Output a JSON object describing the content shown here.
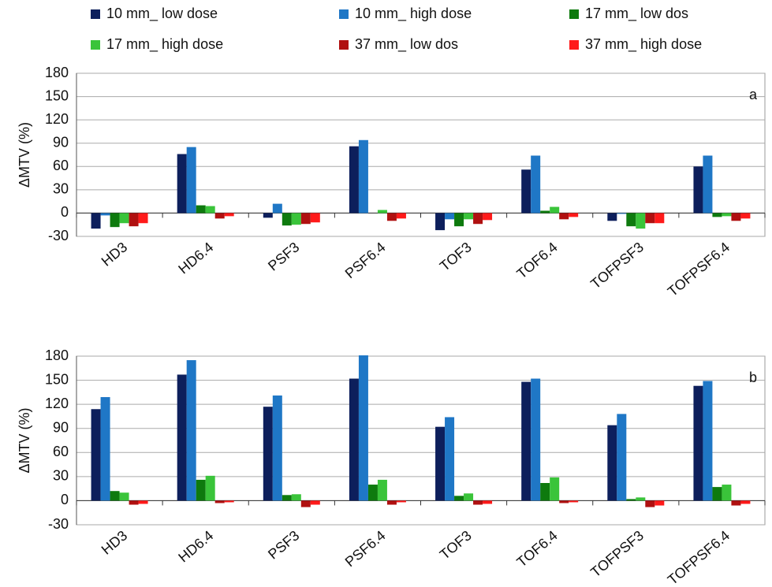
{
  "chart_data": [
    {
      "type": "bar",
      "y_label": "ΔMTV (%)",
      "label": "a",
      "categories": [
        "HD3",
        "HD6.4",
        "PSF3",
        "PSF6.4",
        "TOF3",
        "TOF6.4",
        "TOFPSF3",
        "TOFPSF6.4"
      ],
      "series": [
        {
          "name": "10 mm_ low dose",
          "color": "#0d1f5c",
          "values": [
            -20,
            76,
            -6,
            86,
            -22,
            56,
            -10,
            60
          ]
        },
        {
          "name": "10 mm_ high dose",
          "color": "#1f77c6",
          "values": [
            -3,
            85,
            12,
            94,
            -8,
            74,
            -1,
            74
          ]
        },
        {
          "name": "17 mm_ low dos",
          "color": "#0e7a0e",
          "values": [
            -18,
            10,
            -16,
            0,
            -17,
            3,
            -17,
            -5
          ]
        },
        {
          "name": "17 mm_ high dose",
          "color": "#3ac43a",
          "values": [
            -13,
            9,
            -15,
            4,
            -8,
            8,
            -20,
            -4
          ]
        },
        {
          "name": "37 mm_ low dos",
          "color": "#b01010",
          "values": [
            -17,
            -7,
            -14,
            -10,
            -14,
            -8,
            -13,
            -10
          ]
        },
        {
          "name": "37 mm_ high dose",
          "color": "#ff1a1a",
          "values": [
            -13,
            -4,
            -12,
            -7,
            -9,
            -5,
            -13,
            -7
          ]
        }
      ],
      "ylim": [
        -30,
        180
      ],
      "yticks": [
        -30,
        0,
        30,
        60,
        90,
        120,
        150,
        180
      ],
      "grid": true
    },
    {
      "type": "bar",
      "y_label": "ΔMTV (%)",
      "label": "b",
      "categories": [
        "HD3",
        "HD6.4",
        "PSF3",
        "PSF6.4",
        "TOF3",
        "TOF6.4",
        "TOFPSF3",
        "TOFPSF6.4"
      ],
      "series": [
        {
          "color": "#0d1f5c",
          "values": [
            114,
            157,
            117,
            152,
            92,
            148,
            94,
            143
          ]
        },
        {
          "color": "#1f77c6",
          "values": [
            129,
            175,
            131,
            181,
            104,
            152,
            108,
            149
          ]
        },
        {
          "color": "#0e7a0e",
          "values": [
            12,
            26,
            7,
            20,
            6,
            22,
            2,
            17
          ]
        },
        {
          "color": "#3ac43a",
          "values": [
            10,
            31,
            8,
            26,
            9,
            29,
            4,
            20
          ]
        },
        {
          "color": "#b01010",
          "values": [
            -5,
            -3,
            -8,
            -5,
            -5,
            -3,
            -8,
            -6
          ]
        },
        {
          "color": "#ff1a1a",
          "values": [
            -4,
            -2,
            -5,
            -2,
            -4,
            -2,
            -6,
            -4
          ]
        }
      ],
      "ylim": [
        -30,
        180
      ],
      "yticks": [
        -30,
        0,
        30,
        60,
        90,
        120,
        150,
        180
      ],
      "grid": true
    }
  ]
}
